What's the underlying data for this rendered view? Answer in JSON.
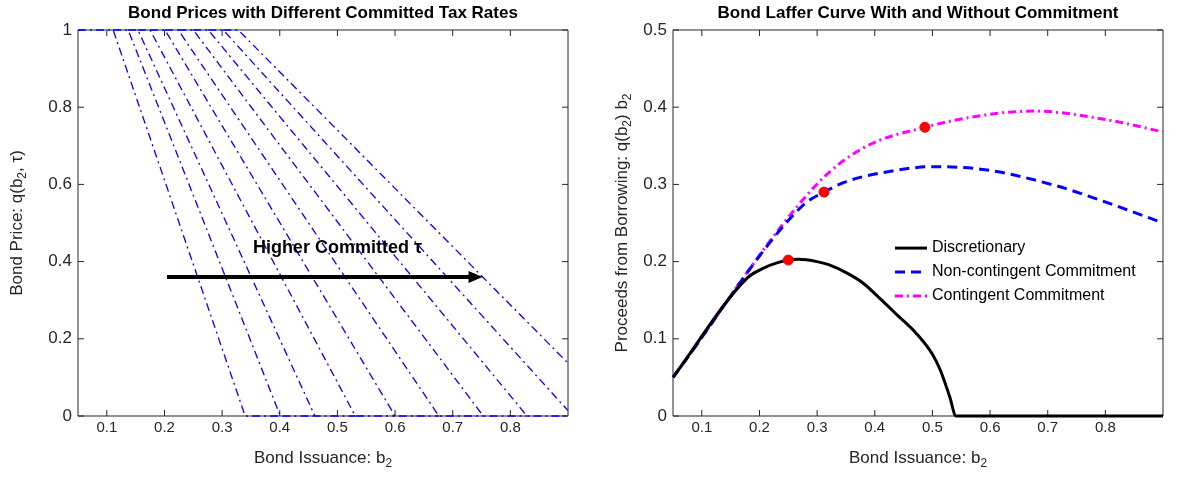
{
  "chart_data": [
    {
      "type": "line",
      "title": "Bond Prices with Different Committed Tax Rates",
      "xlabel": "Bond Issuance: b$_{2}$",
      "ylabel": "Bond Price: q(b$_{2}$, τ)",
      "xlim": [
        0.05,
        0.9
      ],
      "ylim": [
        0,
        1
      ],
      "xticks": [
        0.1,
        0.2,
        0.3,
        0.4,
        0.5,
        0.6,
        0.7,
        0.8
      ],
      "yticks": [
        0,
        0.2,
        0.4,
        0.6,
        0.8,
        1
      ],
      "grid": false,
      "legend": false,
      "marker": "none",
      "annotations": [
        {
          "text": "Higher Committed τ",
          "x": 0.5,
          "y": 0.41
        }
      ],
      "series": [
        {
          "color": "#0000ff",
          "line_style": "dashdot",
          "x": [
            0.05,
            0.111,
            0.34,
            0.401
          ],
          "values": [
            1,
            1,
            0,
            0
          ]
        },
        {
          "color": "#0000ff",
          "line_style": "dashdot",
          "x": [
            0.111,
            0.137,
            0.401,
            0.461
          ],
          "values": [
            1,
            1,
            0,
            0
          ]
        },
        {
          "color": "#0000ff",
          "line_style": "dashdot",
          "x": [
            0.137,
            0.154,
            0.461,
            0.531
          ],
          "values": [
            1,
            1,
            0,
            0
          ]
        },
        {
          "color": "#0000ff",
          "line_style": "dashdot",
          "x": [
            0.154,
            0.175,
            0.531,
            0.6
          ],
          "values": [
            1,
            1,
            0,
            0
          ]
        },
        {
          "color": "#0000ff",
          "line_style": "dashdot",
          "x": [
            0.175,
            0.201,
            0.6,
            0.676
          ],
          "values": [
            1,
            1,
            0,
            0
          ]
        },
        {
          "color": "#0000ff",
          "line_style": "dashdot",
          "x": [
            0.201,
            0.224,
            0.676,
            0.753
          ],
          "values": [
            1,
            1,
            0,
            0
          ]
        },
        {
          "color": "#0000ff",
          "line_style": "dashdot",
          "x": [
            0.224,
            0.25,
            0.753,
            0.829
          ],
          "values": [
            1,
            1,
            0,
            0
          ]
        },
        {
          "color": "#0000ff",
          "line_style": "dashdot",
          "x": [
            0.25,
            0.276,
            0.829,
            0.9
          ],
          "values": [
            1,
            1,
            0,
            0
          ]
        },
        {
          "color": "#0000ff",
          "line_style": "dashdot",
          "x": [
            0.276,
            0.302,
            0.9
          ],
          "values": [
            1,
            1,
            0.014
          ]
        },
        {
          "color": "#0000ff",
          "line_style": "dashdot",
          "x": [
            0.302,
            0.328,
            0.9
          ],
          "values": [
            1,
            1,
            0.137
          ]
        }
      ]
    },
    {
      "type": "line",
      "title": "Bond Laffer Curve With and Without Commitment",
      "xlabel": "Bond Issuance: b$_{2}$",
      "ylabel": "Proceeds from Borrowing: q(b$_{2}$) b$_{2}$",
      "xlim": [
        0.05,
        0.9
      ],
      "ylim": [
        0,
        0.5
      ],
      "xticks": [
        0.1,
        0.2,
        0.3,
        0.4,
        0.5,
        0.6,
        0.7,
        0.8
      ],
      "yticks": [
        0,
        0.1,
        0.2,
        0.3,
        0.4,
        0.5
      ],
      "grid": false,
      "legend": "right",
      "series": [
        {
          "name": "Discretionary",
          "color": "#000000",
          "line_style": "solid",
          "marker": "none",
          "x": [
            0.05,
            0.179,
            0.203,
            0.233,
            0.268,
            0.3,
            0.32,
            0.352,
            0.38,
            0.412,
            0.44,
            0.472,
            0.5,
            0.514,
            0.53,
            0.541,
            0.9
          ],
          "values": [
            0.05,
            0.179,
            0.19,
            0.199,
            0.203,
            0.2,
            0.196,
            0.185,
            0.172,
            0.15,
            0.13,
            0.107,
            0.08,
            0.059,
            0.025,
            0,
            0
          ]
        },
        {
          "name": "Non-contingent Commitment",
          "color": "#0000ff",
          "line_style": "dashed",
          "marker": "none",
          "x": [
            0.05,
            0.274,
            0.312,
            0.352,
            0.412,
            0.502,
            0.592,
            0.711,
            0.801,
            0.9
          ],
          "values": [
            0.05,
            0.272,
            0.29,
            0.304,
            0.315,
            0.323,
            0.319,
            0.299,
            0.277,
            0.25
          ]
        },
        {
          "name": "Contingent Commitment",
          "color": "#ff00ff",
          "line_style": "dashdot",
          "marker": "none",
          "x": [
            0.05,
            0.298,
            0.382,
            0.487,
            0.592,
            0.675,
            0.801,
            0.9
          ],
          "values": [
            0.05,
            0.299,
            0.348,
            0.374,
            0.39,
            0.395,
            0.384,
            0.368
          ]
        },
        {
          "type": "scatter",
          "color": "#ff0000",
          "marker": "circle",
          "x": [
            0.25,
            0.312,
            0.487
          ],
          "values": [
            0.202,
            0.29,
            0.374
          ]
        }
      ]
    }
  ]
}
